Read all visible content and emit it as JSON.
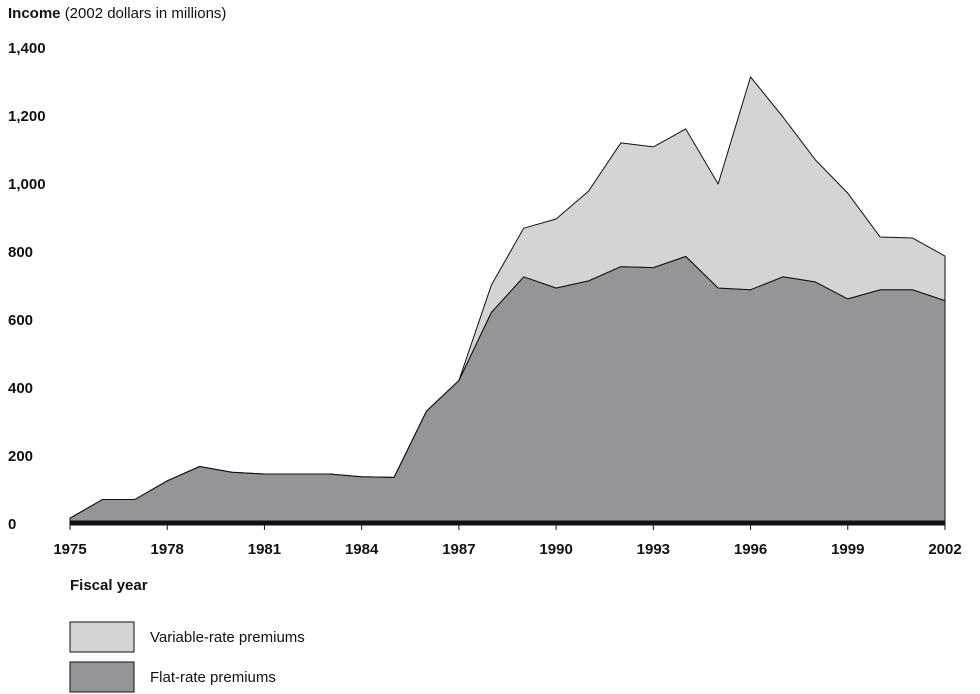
{
  "chart_data": {
    "type": "stacked_area",
    "y_axis_label": "Income",
    "y_axis_unit": "(2002 dollars in millions)",
    "x_axis_label": "Fiscal year",
    "x": [
      1975,
      1976,
      1977,
      1978,
      1979,
      1980,
      1981,
      1982,
      1983,
      1984,
      1985,
      1986,
      1987,
      1988,
      1989,
      1990,
      1991,
      1992,
      1993,
      1994,
      1995,
      1996,
      1997,
      1998,
      1999,
      2000,
      2001,
      2002
    ],
    "series": [
      {
        "name": "Flat-rate premiums",
        "color": "#949598",
        "values": [
          20,
          75,
          75,
          130,
          172,
          155,
          150,
          150,
          150,
          142,
          140,
          335,
          425,
          625,
          730,
          697,
          718,
          760,
          757,
          790,
          697,
          692,
          730,
          715,
          665,
          692,
          692,
          660
        ]
      },
      {
        "name": "Variable-rate premiums",
        "color": "#d3d4d6",
        "values": [
          0,
          0,
          0,
          0,
          0,
          0,
          0,
          0,
          0,
          0,
          0,
          0,
          0,
          80,
          143,
          203,
          264,
          364,
          355,
          375,
          306,
          626,
          470,
          359,
          311,
          155,
          152,
          131
        ]
      }
    ],
    "xlim": [
      1975,
      2002
    ],
    "xticks": [
      1975,
      1978,
      1981,
      1984,
      1987,
      1990,
      1993,
      1996,
      1999,
      2002
    ],
    "ylim": [
      0,
      1400
    ],
    "yticks": [
      0,
      200,
      400,
      600,
      800,
      {
        "value": 1000,
        "label": "1,000"
      },
      {
        "value": 1200,
        "label": "1,200"
      },
      {
        "value": 1400,
        "label": "1,400"
      }
    ],
    "grid": false
  }
}
